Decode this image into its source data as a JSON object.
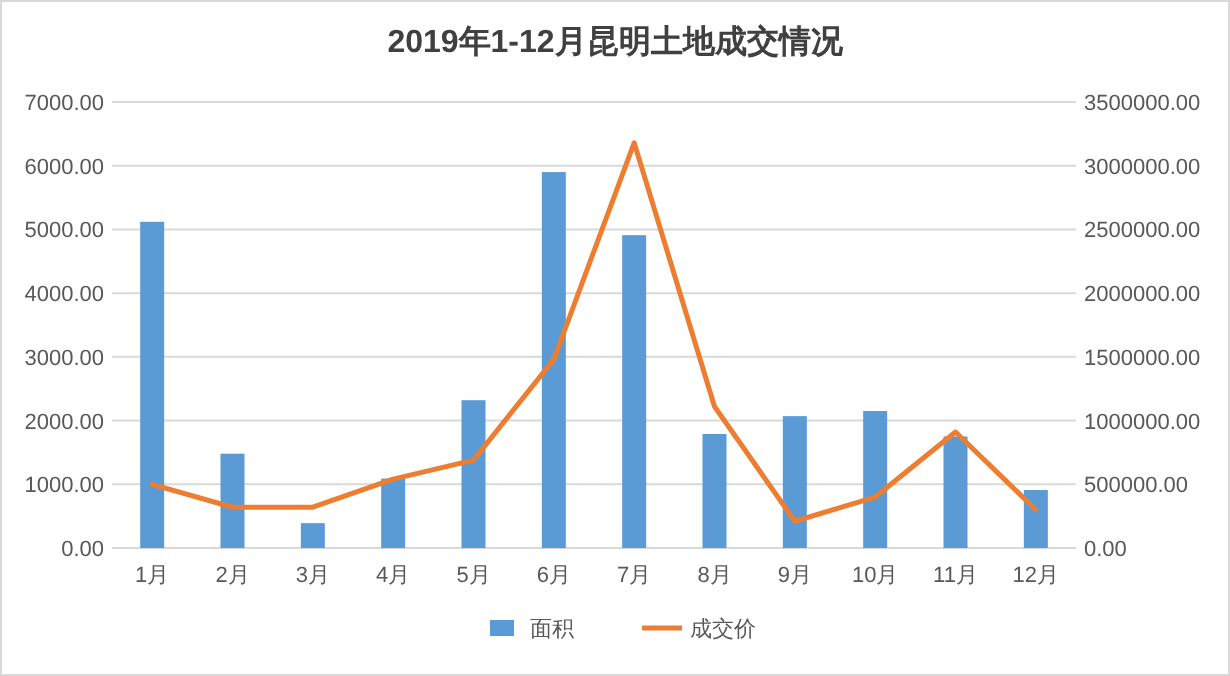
{
  "chart_data": {
    "type": "bar",
    "title": "2019年1-12月昆明土地成交情况",
    "categories": [
      "1月",
      "2月",
      "3月",
      "4月",
      "5月",
      "6月",
      "7月",
      "8月",
      "9月",
      "10月",
      "11月",
      "12月"
    ],
    "series": [
      {
        "name": "面积",
        "color": "#5b9bd5",
        "values": [
          5120,
          1480,
          390,
          1090,
          2320,
          5900,
          4910,
          1790,
          2070,
          2150,
          1750,
          910
        ]
      },
      {
        "name": "成交价",
        "type": "line",
        "axis": "y2",
        "color": "#ed7d31",
        "values": [
          500000,
          320000,
          320000,
          540000,
          690000,
          1480000,
          3180000,
          1110000,
          210000,
          400000,
          910000,
          300000
        ]
      }
    ],
    "ylim": [
      0,
      7000
    ],
    "yticks": [
      {
        "value": 0,
        "label": "0.00"
      },
      {
        "value": 1000,
        "label": "1000.00"
      },
      {
        "value": 2000,
        "label": "2000.00"
      },
      {
        "value": 3000,
        "label": "3000.00"
      },
      {
        "value": 4000,
        "label": "4000.00"
      },
      {
        "value": 5000,
        "label": "5000.00"
      },
      {
        "value": 6000,
        "label": "6000.00"
      },
      {
        "value": 7000,
        "label": "7000.00"
      }
    ],
    "y2lim": [
      0,
      3500000
    ],
    "y2ticks": [
      {
        "value": 0,
        "label": "0.00"
      },
      {
        "value": 500000,
        "label": "500000.00"
      },
      {
        "value": 1000000,
        "label": "1000000.00"
      },
      {
        "value": 1500000,
        "label": "1500000.00"
      },
      {
        "value": 2000000,
        "label": "2000000.00"
      },
      {
        "value": 2500000,
        "label": "2500000.00"
      },
      {
        "value": 3000000,
        "label": "3000000.00"
      },
      {
        "value": 3500000,
        "label": "3500000.00"
      }
    ],
    "grid": "y",
    "legend": "bottom",
    "marker": "none",
    "line_style": "solid"
  }
}
